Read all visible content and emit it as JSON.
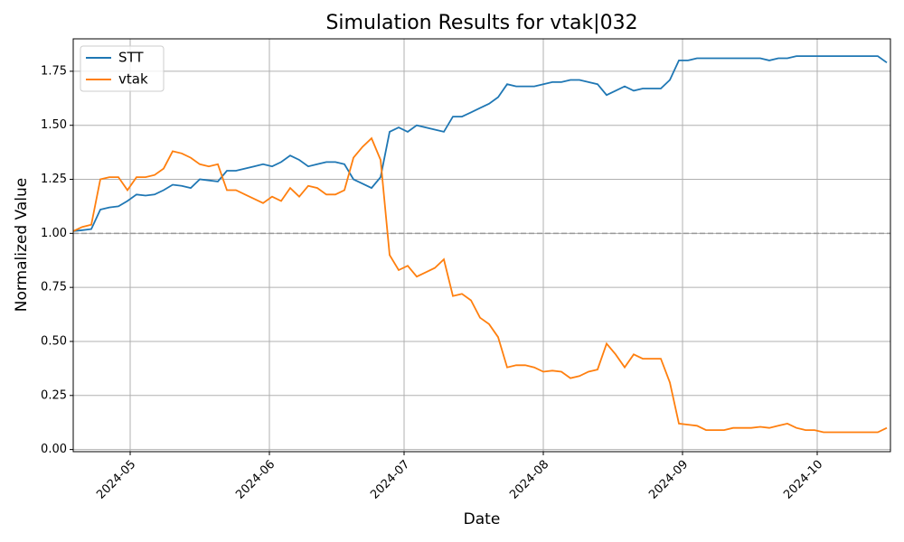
{
  "chart_data": {
    "type": "line",
    "title": "Simulation Results for vtak|032",
    "x_label": "Date",
    "y_label": "Normalized Value",
    "categories": [
      null,
      null,
      null,
      null,
      null,
      null,
      null,
      null,
      null,
      null,
      null,
      null,
      null,
      null,
      null,
      null,
      null,
      null,
      null,
      null,
      null,
      null,
      null,
      null,
      null,
      null,
      null,
      null,
      null,
      null,
      null,
      null,
      null,
      null,
      null,
      null,
      null,
      null,
      null,
      null,
      null,
      null,
      null,
      null,
      null,
      null,
      null,
      null,
      null,
      null,
      null,
      null,
      null,
      null,
      null,
      null,
      null,
      null,
      null,
      null,
      null,
      null,
      null,
      null,
      null,
      null,
      null,
      null,
      null,
      null,
      null,
      null,
      null,
      null,
      null,
      null,
      null,
      null,
      null,
      null,
      null,
      null,
      null,
      null,
      null,
      null,
      null,
      null,
      null,
      null,
      null
    ],
    "xlim": [
      0,
      90.4
    ],
    "xticks": [
      {
        "value": 6.3,
        "label": "2024-05"
      },
      {
        "value": 21.7,
        "label": "2024-06"
      },
      {
        "value": 36.6,
        "label": "2024-07"
      },
      {
        "value": 52,
        "label": "2024-08"
      },
      {
        "value": 67.4,
        "label": "2024-09"
      },
      {
        "value": 82.3,
        "label": "2024-10"
      }
    ],
    "ylim": [
      -0.01,
      1.9
    ],
    "yticks": [
      {
        "value": 0,
        "label": "0.00"
      },
      0.25,
      {
        "value": 0.5,
        "label": "0.50"
      },
      0.75,
      {
        "value": 1,
        "label": "1.00"
      },
      1.25,
      {
        "value": 1.5,
        "label": "1.50"
      },
      1.75
    ],
    "grid": true,
    "legend": "upper left",
    "hline": {
      "value": 1,
      "color": "#999999"
    },
    "series": [
      {
        "name": "STT",
        "color": "#1f77b4",
        "values": [
          1.01,
          1.015,
          1.02,
          1.11,
          1.12,
          1.125,
          1.15,
          1.18,
          1.175,
          1.18,
          1.2,
          1.225,
          1.22,
          1.21,
          1.25,
          1.245,
          1.24,
          1.29,
          1.29,
          1.3,
          1.31,
          1.32,
          1.31,
          1.33,
          1.36,
          1.34,
          1.31,
          1.32,
          1.33,
          1.33,
          1.32,
          1.25,
          1.23,
          1.21,
          1.26,
          1.47,
          1.49,
          1.47,
          1.5,
          1.49,
          1.48,
          1.47,
          1.54,
          1.54,
          1.56,
          1.58,
          1.6,
          1.63,
          1.69,
          1.68,
          1.68,
          1.68,
          1.69,
          1.7,
          1.7,
          1.71,
          1.71,
          1.7,
          1.69,
          1.64,
          1.66,
          1.68,
          1.66,
          1.67,
          1.67,
          1.67,
          1.71,
          1.8,
          1.8,
          1.81,
          1.81,
          1.81,
          1.81,
          1.81,
          1.81,
          1.81,
          1.81,
          1.8,
          1.81,
          1.81,
          1.82,
          1.82,
          1.82,
          1.82,
          1.82,
          1.82,
          1.82,
          1.82,
          1.82,
          1.82,
          1.79
        ]
      },
      {
        "name": "vtak",
        "color": "#ff7f0e",
        "values": [
          1.01,
          1.03,
          1.04,
          1.25,
          1.26,
          1.26,
          1.2,
          1.26,
          1.26,
          1.27,
          1.3,
          1.38,
          1.37,
          1.35,
          1.32,
          1.31,
          1.32,
          1.2,
          1.2,
          1.18,
          1.16,
          1.14,
          1.17,
          1.15,
          1.21,
          1.17,
          1.22,
          1.21,
          1.18,
          1.18,
          1.2,
          1.35,
          1.4,
          1.44,
          1.34,
          0.9,
          0.83,
          0.85,
          0.8,
          0.82,
          0.84,
          0.88,
          0.71,
          0.72,
          0.69,
          0.61,
          0.58,
          0.52,
          0.38,
          0.39,
          0.39,
          0.38,
          0.36,
          0.365,
          0.36,
          0.33,
          0.34,
          0.36,
          0.37,
          0.49,
          0.44,
          0.38,
          0.44,
          0.42,
          0.42,
          0.42,
          0.31,
          0.12,
          0.115,
          0.11,
          0.09,
          0.09,
          0.09,
          0.1,
          0.1,
          0.1,
          0.105,
          0.1,
          0.11,
          0.12,
          0.1,
          0.09,
          0.09,
          0.08,
          0.08,
          0.08,
          0.08,
          0.08,
          0.08,
          0.08,
          0.1
        ]
      }
    ]
  }
}
